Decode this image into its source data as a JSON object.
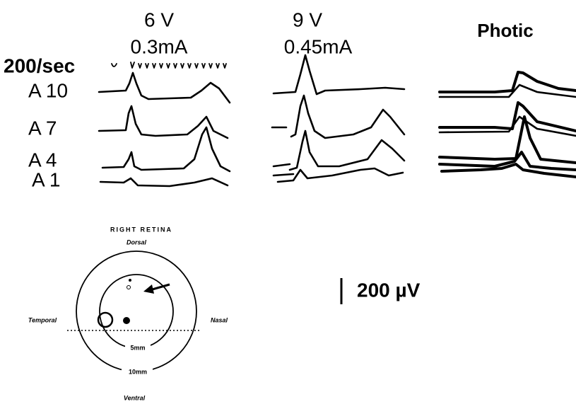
{
  "column_headers": [
    {
      "voltage": "6 V",
      "current": "0.3mA"
    },
    {
      "voltage": "9 V",
      "current": "0.45mA"
    },
    {
      "label": "Photic"
    }
  ],
  "time_marker": "200/sec",
  "row_labels": [
    "A 10",
    "A 7",
    "A 4",
    "A 1"
  ],
  "diagram": {
    "title": "RIGHT RETINA",
    "dorsal": "Dorsal",
    "temporal": "Temporal",
    "nasal": "Nasal",
    "inner_radius": "5mm",
    "outer_radius": "10mm",
    "ventral": "Ventral"
  },
  "scale_bar": "200 µV"
}
